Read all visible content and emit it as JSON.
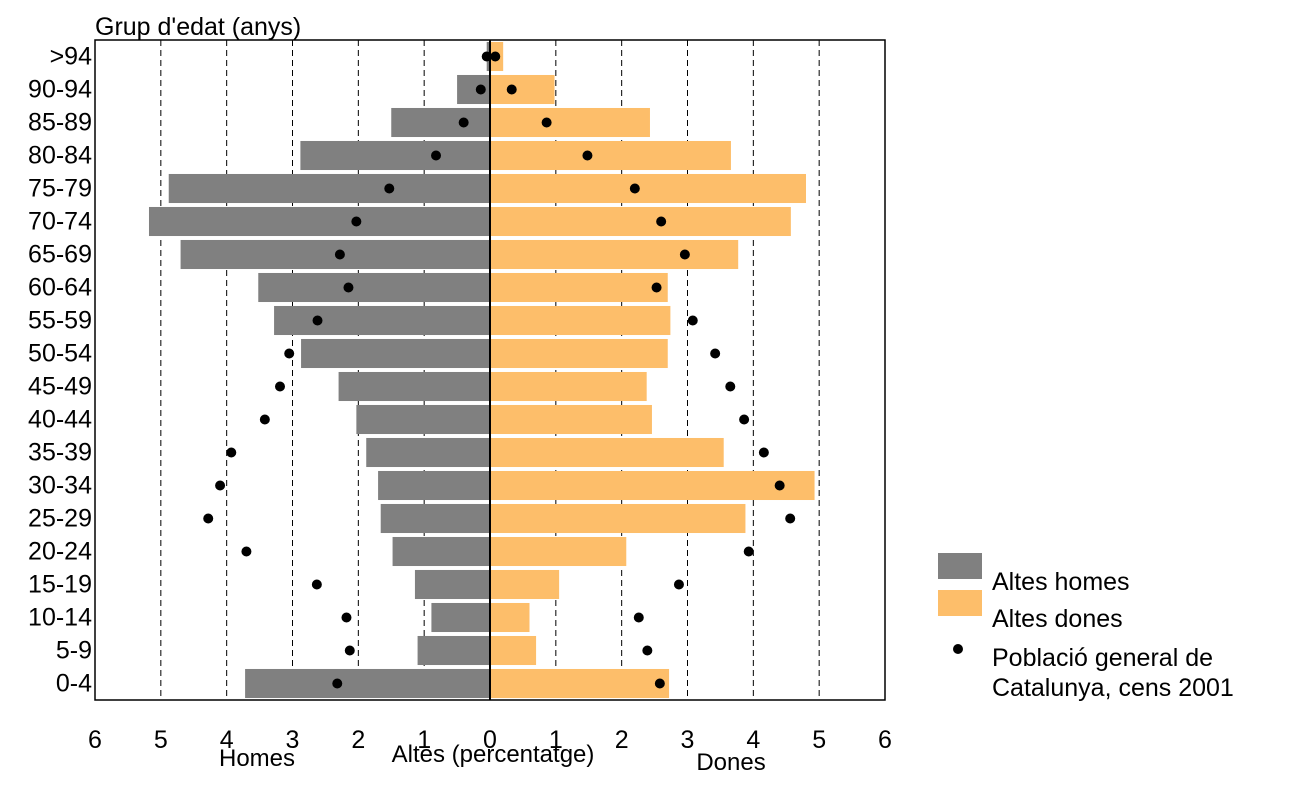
{
  "chart_data": {
    "type": "bar",
    "title": "Grup d'edat (anys)",
    "xlabel": "Altes (percentatge)",
    "side_labels": {
      "left": "Homes",
      "right": "Dones"
    },
    "xlim": [
      -6,
      6
    ],
    "x_ticks": [
      6,
      5,
      4,
      3,
      2,
      1,
      0,
      1,
      2,
      3,
      4,
      5,
      6
    ],
    "grid": "vertical dashed",
    "legend_position": "right",
    "categories": [
      ">94",
      "90-94",
      "85-89",
      "80-84",
      "75-79",
      "70-74",
      "65-69",
      "60-64",
      "55-59",
      "50-54",
      "45-49",
      "40-44",
      "35-39",
      "30-34",
      "25-29",
      "20-24",
      "15-19",
      "10-14",
      "5-9",
      "0-4"
    ],
    "series": [
      {
        "name": "Altes homes",
        "kind": "bar",
        "side": "left",
        "color": "#808080",
        "values": [
          0.05,
          0.5,
          1.5,
          2.88,
          4.88,
          5.18,
          4.7,
          3.52,
          3.28,
          2.87,
          2.3,
          2.03,
          1.88,
          1.7,
          1.66,
          1.48,
          1.14,
          0.89,
          1.1,
          3.72
        ]
      },
      {
        "name": "Altes dones",
        "kind": "bar",
        "side": "right",
        "color": "#FDBE6A",
        "values": [
          0.2,
          0.98,
          2.43,
          3.66,
          4.8,
          4.57,
          3.77,
          2.7,
          2.74,
          2.7,
          2.38,
          2.46,
          3.55,
          4.93,
          3.88,
          2.07,
          1.05,
          0.6,
          0.7,
          2.72
        ]
      },
      {
        "name": "Població general de Catalunya, cens 2001",
        "kind": "point",
        "color": "#000000",
        "values_left": [
          0.05,
          0.14,
          0.4,
          0.82,
          1.53,
          2.03,
          2.28,
          2.15,
          2.62,
          3.05,
          3.19,
          3.42,
          3.93,
          4.1,
          4.28,
          3.7,
          2.63,
          2.18,
          2.13,
          2.32
        ],
        "values_right": [
          0.08,
          0.33,
          0.86,
          1.48,
          2.2,
          2.6,
          2.96,
          2.53,
          3.08,
          3.42,
          3.65,
          3.86,
          4.16,
          4.4,
          4.56,
          3.93,
          2.87,
          2.26,
          2.39,
          2.58
        ]
      }
    ]
  },
  "legend": {
    "homes": "Altes homes",
    "dones": "Altes dones",
    "poblacio_line1": "Població general de",
    "poblacio_line2": "Catalunya, cens 2001"
  }
}
